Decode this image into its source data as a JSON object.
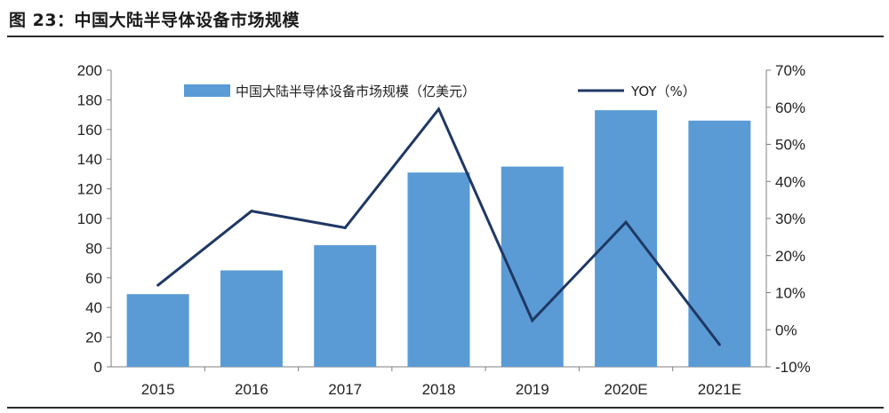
{
  "figure": {
    "title": "图 23：中国大陆半导体设备市场规模"
  },
  "colors": {
    "bar": "#5B9BD5",
    "line": "#1F3864",
    "rule": "#2b2b2b",
    "text": "#222222"
  },
  "chart_data": {
    "type": "bar",
    "categories": [
      "2015",
      "2016",
      "2017",
      "2018",
      "2019",
      "2020E",
      "2021E"
    ],
    "series": [
      {
        "name": "中国大陆半导体设备市场规模（亿美元）",
        "type": "bar",
        "axis": "left",
        "values": [
          49,
          65,
          82,
          131,
          135,
          173,
          166
        ]
      },
      {
        "name": "YOY（%）",
        "type": "line",
        "axis": "right",
        "values": [
          12,
          32,
          27.5,
          59.5,
          2.5,
          29,
          -4
        ]
      }
    ],
    "y_left": {
      "min": 0,
      "max": 200,
      "ticks": [
        "0",
        "20",
        "40",
        "60",
        "80",
        "100",
        "120",
        "140",
        "160",
        "180",
        "200"
      ]
    },
    "y_right": {
      "min": -10,
      "max": 70,
      "ticks": [
        "-10%",
        "0%",
        "10%",
        "20%",
        "30%",
        "40%",
        "50%",
        "60%",
        "70%"
      ]
    },
    "legend": {
      "placement": "top-center",
      "bar_label": "中国大陆半导体设备市场规模（亿美元）",
      "line_label": "YOY（%）"
    },
    "grid": false
  }
}
